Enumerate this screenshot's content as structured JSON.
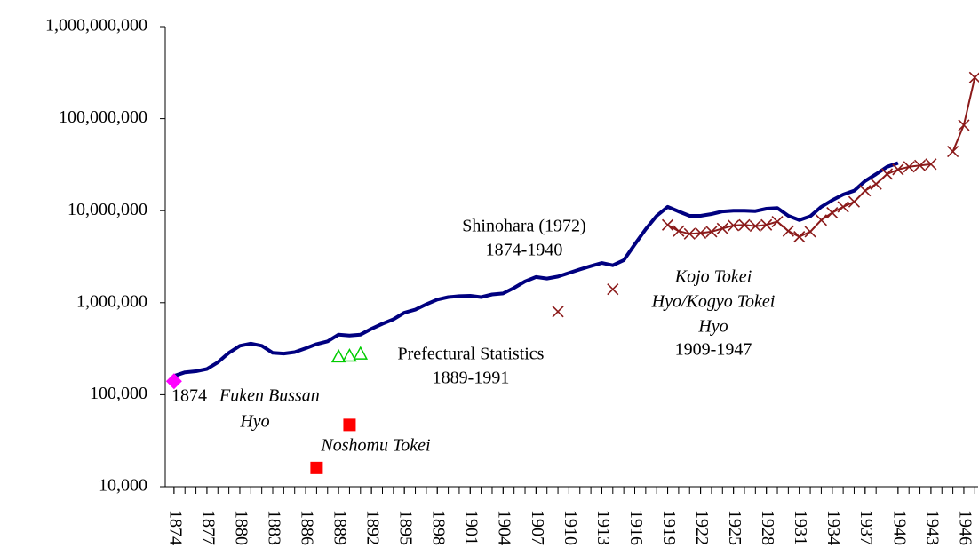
{
  "chart_data": {
    "type": "line",
    "log_scale_y": true,
    "grid": false,
    "xlim": [
      1873.2,
      1947.3
    ],
    "xticks": [
      1874,
      1877,
      1880,
      1883,
      1886,
      1889,
      1892,
      1895,
      1898,
      1901,
      1904,
      1907,
      1910,
      1913,
      1916,
      1919,
      1922,
      1925,
      1928,
      1931,
      1934,
      1937,
      1940,
      1943,
      1946
    ],
    "ylim": [
      10000,
      1000000000
    ],
    "yticks": [
      {
        "value": 10000,
        "label": "10,000"
      },
      {
        "value": 100000,
        "label": "100,000"
      },
      {
        "value": 1000000,
        "label": "1,000,000"
      },
      {
        "value": 10000000,
        "label": "10,000,000"
      },
      {
        "value": 100000000,
        "label": "100,000,000"
      },
      {
        "value": 1000000000,
        "label": "1,000,000,000"
      }
    ],
    "series": [
      {
        "color": "#000080",
        "marker": "none",
        "line": true,
        "x": [
          1874,
          1875,
          1876,
          1877,
          1878,
          1879,
          1880,
          1881,
          1882,
          1883,
          1884,
          1885,
          1886,
          1887,
          1888,
          1889,
          1890,
          1891,
          1892,
          1893,
          1894,
          1895,
          1896,
          1897,
          1898,
          1899,
          1900,
          1901,
          1902,
          1903,
          1904,
          1905,
          1906,
          1907,
          1908,
          1909,
          1910,
          1911,
          1912,
          1913,
          1914,
          1915,
          1916,
          1917,
          1918,
          1919,
          1920,
          1921,
          1922,
          1923,
          1924,
          1925,
          1926,
          1927,
          1928,
          1929,
          1930,
          1931,
          1932,
          1933,
          1934,
          1935,
          1936,
          1937,
          1938,
          1939,
          1940
        ],
        "values": [
          160000,
          175000,
          180000,
          190000,
          225000,
          285000,
          340000,
          360000,
          340000,
          285000,
          280000,
          290000,
          320000,
          355000,
          380000,
          450000,
          440000,
          450000,
          520000,
          590000,
          660000,
          780000,
          840000,
          960000,
          1080000,
          1150000,
          1180000,
          1190000,
          1150000,
          1230000,
          1260000,
          1450000,
          1700000,
          1900000,
          1830000,
          1920000,
          2100000,
          2300000,
          2500000,
          2700000,
          2550000,
          2900000,
          4300000,
          6300000,
          8800000,
          11000000,
          9800000,
          8800000,
          8800000,
          9200000,
          9800000,
          10000000,
          10000000,
          9900000,
          10500000,
          10700000,
          8800000,
          7900000,
          8700000,
          11000000,
          13000000,
          15000000,
          16500000,
          21000000,
          25000000,
          30000000,
          33000000
        ]
      },
      {
        "color": "#8b1a1a",
        "marker": "x",
        "line": true,
        "x": [
          1909,
          1910,
          1911,
          1912,
          1913,
          1914,
          1915,
          1916,
          1917,
          1918,
          1919,
          1920,
          1921,
          1922,
          1923,
          1924,
          1925,
          1926,
          1927,
          1928,
          1929,
          1930,
          1931,
          1932,
          1933,
          1934,
          1935,
          1936,
          1937,
          1938,
          1939,
          1940,
          1941,
          1942,
          1943,
          1944,
          1945,
          1946,
          1947
        ],
        "values": [
          800000,
          null,
          null,
          null,
          null,
          1400000,
          null,
          null,
          null,
          null,
          7000000,
          6000000,
          5600000,
          5700000,
          5900000,
          6400000,
          6900000,
          7000000,
          6800000,
          7000000,
          7600000,
          6000000,
          5200000,
          5900000,
          7900000,
          9500000,
          11000000,
          12500000,
          16500000,
          19500000,
          25000000,
          28000000,
          30000000,
          31000000,
          32000000,
          null,
          44000000,
          85000000,
          280000000
        ]
      },
      {
        "color": "#00cc00",
        "marker": "triangle",
        "line": false,
        "x": [
          1889,
          1890,
          1891
        ],
        "values": [
          260000,
          265000,
          280000
        ]
      },
      {
        "color": "#ff0000",
        "marker": "square",
        "line": false,
        "x": [
          1887,
          1890
        ],
        "values": [
          16000,
          47000
        ]
      },
      {
        "color": "#ff00ff",
        "marker": "diamond",
        "line": false,
        "x": [
          1874
        ],
        "values": [
          140000
        ]
      }
    ],
    "annotations": [
      {
        "text": "Shinohara (1972)",
        "italic": false
      },
      {
        "text": "1874-1940",
        "italic": false
      },
      {
        "text": "Prefectural Statistics",
        "italic": false
      },
      {
        "text": "1889-1991",
        "italic": false
      },
      {
        "text": "1874",
        "italic": false
      },
      {
        "text": "Fuken Bussan",
        "italic": true
      },
      {
        "text": "Hyo",
        "italic": true
      },
      {
        "text": "Noshomu Tokei",
        "italic": true
      },
      {
        "text": "Kojo Tokei",
        "italic": true
      },
      {
        "text": "Hyo/Kogyo Tokei",
        "italic": true
      },
      {
        "text": "Hyo",
        "italic": true
      },
      {
        "text": "1909-1947",
        "italic": false
      }
    ]
  }
}
